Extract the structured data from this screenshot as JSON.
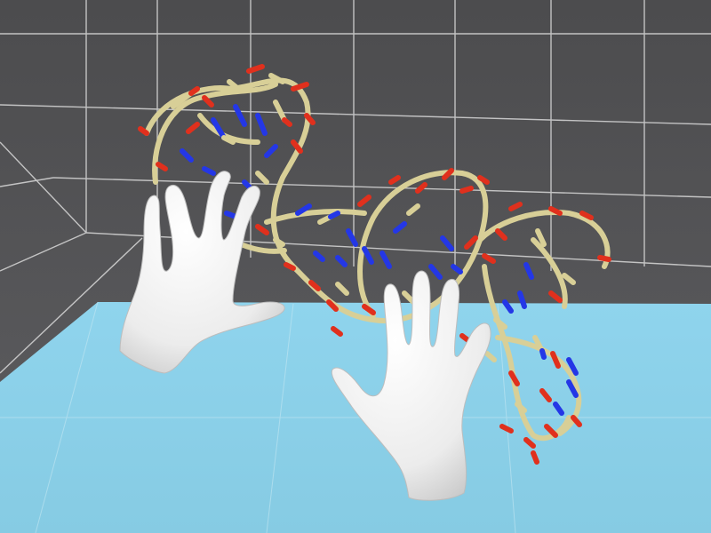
{
  "scene": {
    "description_kind": "vr-molecular-viewer",
    "colors": {
      "background": "#58585a",
      "grid_line": "#dcdcdc",
      "floor": "#8fd2ea",
      "backbone": "#d7cf98",
      "oxygen": "#e0301d",
      "nitrogen": "#2437e6",
      "hand": "#f2f2f2"
    },
    "icons": {
      "left_hand": "left-hand-controller-icon",
      "right_hand": "right-hand-controller-icon"
    }
  }
}
